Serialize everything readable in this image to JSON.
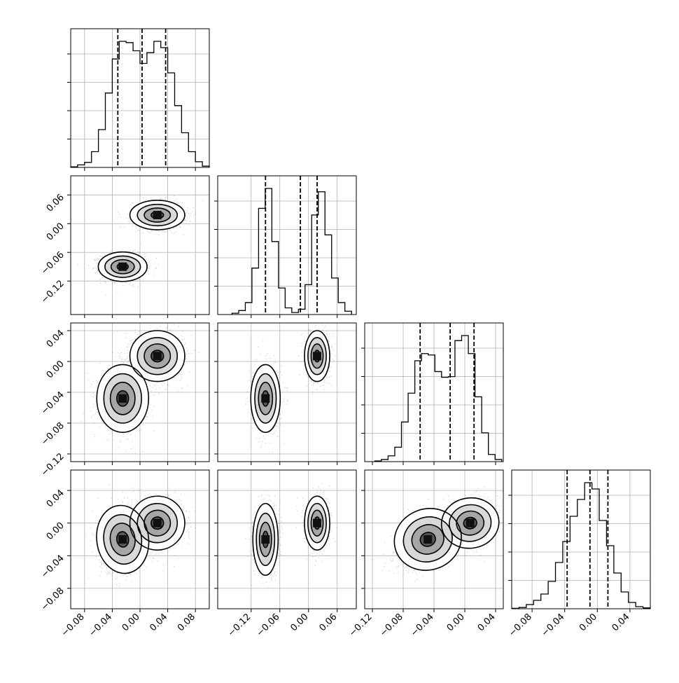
{
  "chart_data": {
    "type": "corner",
    "grid": true,
    "quantile_lines": "dashed",
    "parameters": [
      {
        "range": [
          -0.1,
          0.1
        ],
        "ticks": [
          -0.08,
          -0.04,
          0.0,
          0.04,
          0.08
        ],
        "tick_labels": [
          "−0.08",
          "−0.04",
          "0.00",
          "0.04",
          "0.08"
        ],
        "quantiles": [
          -0.032,
          0.003,
          0.037
        ],
        "hist": [
          1,
          4,
          8,
          25,
          60,
          118,
          172,
          200,
          198,
          185,
          165,
          182,
          200,
          190,
          150,
          98,
          55,
          25,
          9,
          2
        ]
      },
      {
        "range": [
          -0.19,
          0.1
        ],
        "ticks": [
          -0.12,
          -0.06,
          0.0,
          0.06
        ],
        "tick_labels": [
          "−0.12",
          "−0.06",
          "0.00",
          "0.06"
        ],
        "quantiles": [
          -0.09,
          -0.017,
          0.018
        ],
        "hist": [
          2,
          6,
          18,
          70,
          160,
          190,
          110,
          40,
          10,
          3,
          8,
          45,
          150,
          185,
          120,
          55,
          18,
          5
        ],
        "hist_range": [
          -0.16,
          0.09
        ]
      },
      {
        "range": [
          -0.13,
          0.05
        ],
        "ticks": [
          -0.12,
          -0.08,
          -0.04,
          0.0,
          0.04
        ],
        "tick_labels": [
          "−0.12",
          "−0.08",
          "−0.04",
          "0.00",
          "0.04"
        ],
        "quantiles": [
          -0.058,
          -0.019,
          0.012
        ],
        "hist": [
          1,
          3,
          8,
          20,
          55,
          95,
          140,
          150,
          148,
          125,
          117,
          118,
          168,
          175,
          150,
          90,
          40,
          10,
          3
        ],
        "hist_range": [
          -0.117,
          0.048
        ]
      },
      {
        "range": [
          -0.105,
          0.065
        ],
        "ticks": [
          -0.08,
          -0.04,
          0.0,
          0.04
        ],
        "tick_labels": [
          "−0.08",
          "−0.04",
          "0.00",
          "0.04"
        ],
        "quantiles": [
          -0.037,
          -0.009,
          0.013
        ],
        "hist": [
          1,
          3,
          10,
          20,
          35,
          65,
          110,
          160,
          220,
          260,
          300,
          285,
          210,
          150,
          85,
          40,
          15,
          5,
          2
        ]
      }
    ],
    "pairs": [
      {
        "row": 1,
        "col": 0,
        "clusters": [
          [
            -0.025,
            -0.09,
            0.016,
            0.014,
            0.0
          ],
          [
            0.025,
            0.018,
            0.018,
            0.014,
            0.0
          ]
        ]
      },
      {
        "row": 2,
        "col": 0,
        "clusters": [
          [
            -0.025,
            -0.048,
            0.017,
            0.02,
            0.0
          ],
          [
            0.025,
            0.007,
            0.018,
            0.015,
            0.0
          ]
        ]
      },
      {
        "row": 2,
        "col": 1,
        "clusters": [
          [
            -0.09,
            -0.048,
            0.014,
            0.02,
            0.0
          ],
          [
            0.018,
            0.007,
            0.012,
            0.015,
            0.0
          ]
        ]
      },
      {
        "row": 3,
        "col": 0,
        "clusters": [
          [
            -0.025,
            -0.02,
            0.017,
            0.019,
            0.2
          ],
          [
            0.025,
            0.0,
            0.018,
            0.015,
            0.1
          ]
        ]
      },
      {
        "row": 3,
        "col": 1,
        "clusters": [
          [
            -0.09,
            -0.02,
            0.012,
            0.02,
            0.0
          ],
          [
            0.018,
            0.0,
            0.012,
            0.015,
            0.0
          ]
        ]
      },
      {
        "row": 3,
        "col": 2,
        "clusters": [
          [
            -0.048,
            -0.02,
            0.02,
            0.017,
            0.5
          ],
          [
            0.007,
            0.0,
            0.017,
            0.014,
            0.2
          ]
        ]
      }
    ]
  }
}
